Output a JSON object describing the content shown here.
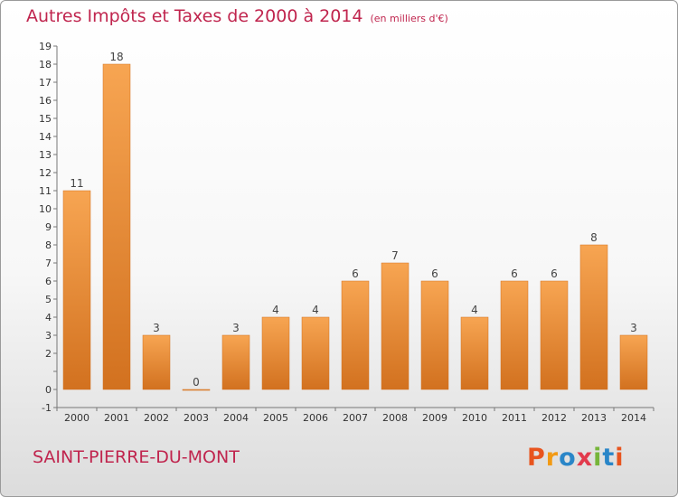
{
  "header": {
    "title": "Autres Impôts et Taxes de 2000 à 2014",
    "unit": "(en milliers d'€)"
  },
  "footer": {
    "commune": "SAINT-PIERRE-DU-MONT",
    "logo": "Proxiti"
  },
  "colors": {
    "title": "#c0254e",
    "bar_top": "#f7a552",
    "bar_bottom": "#d2711f",
    "logo_letters": [
      "#e8541e",
      "#f29a14",
      "#2a86c8",
      "#e23a4c",
      "#77b53a",
      "#2a86c8",
      "#e8541e"
    ]
  },
  "chart_data": {
    "type": "bar",
    "title": "Autres Impôts et Taxes de 2000 à 2014",
    "subtitle": "(en milliers d'€)",
    "categories": [
      "2000",
      "2001",
      "2002",
      "2003",
      "2004",
      "2005",
      "2006",
      "2007",
      "2008",
      "2009",
      "2010",
      "2011",
      "2012",
      "2013",
      "2014"
    ],
    "values": [
      11,
      18,
      3,
      0,
      3,
      4,
      4,
      6,
      7,
      6,
      4,
      6,
      6,
      8,
      3
    ],
    "ylim": [
      -1,
      19
    ],
    "yticks": [
      -1,
      0,
      1,
      2,
      3,
      4,
      5,
      6,
      7,
      8,
      9,
      10,
      11,
      12,
      13,
      14,
      15,
      16,
      17,
      18,
      19
    ],
    "ytick_labels": [
      "-1",
      "0",
      "",
      "2",
      "3",
      "4",
      "5",
      "6",
      "7",
      "8",
      "9",
      "10",
      "11",
      "12",
      "13",
      "14",
      "15",
      "16",
      "17",
      "18",
      "19"
    ],
    "grid": false,
    "data_labels": true
  }
}
